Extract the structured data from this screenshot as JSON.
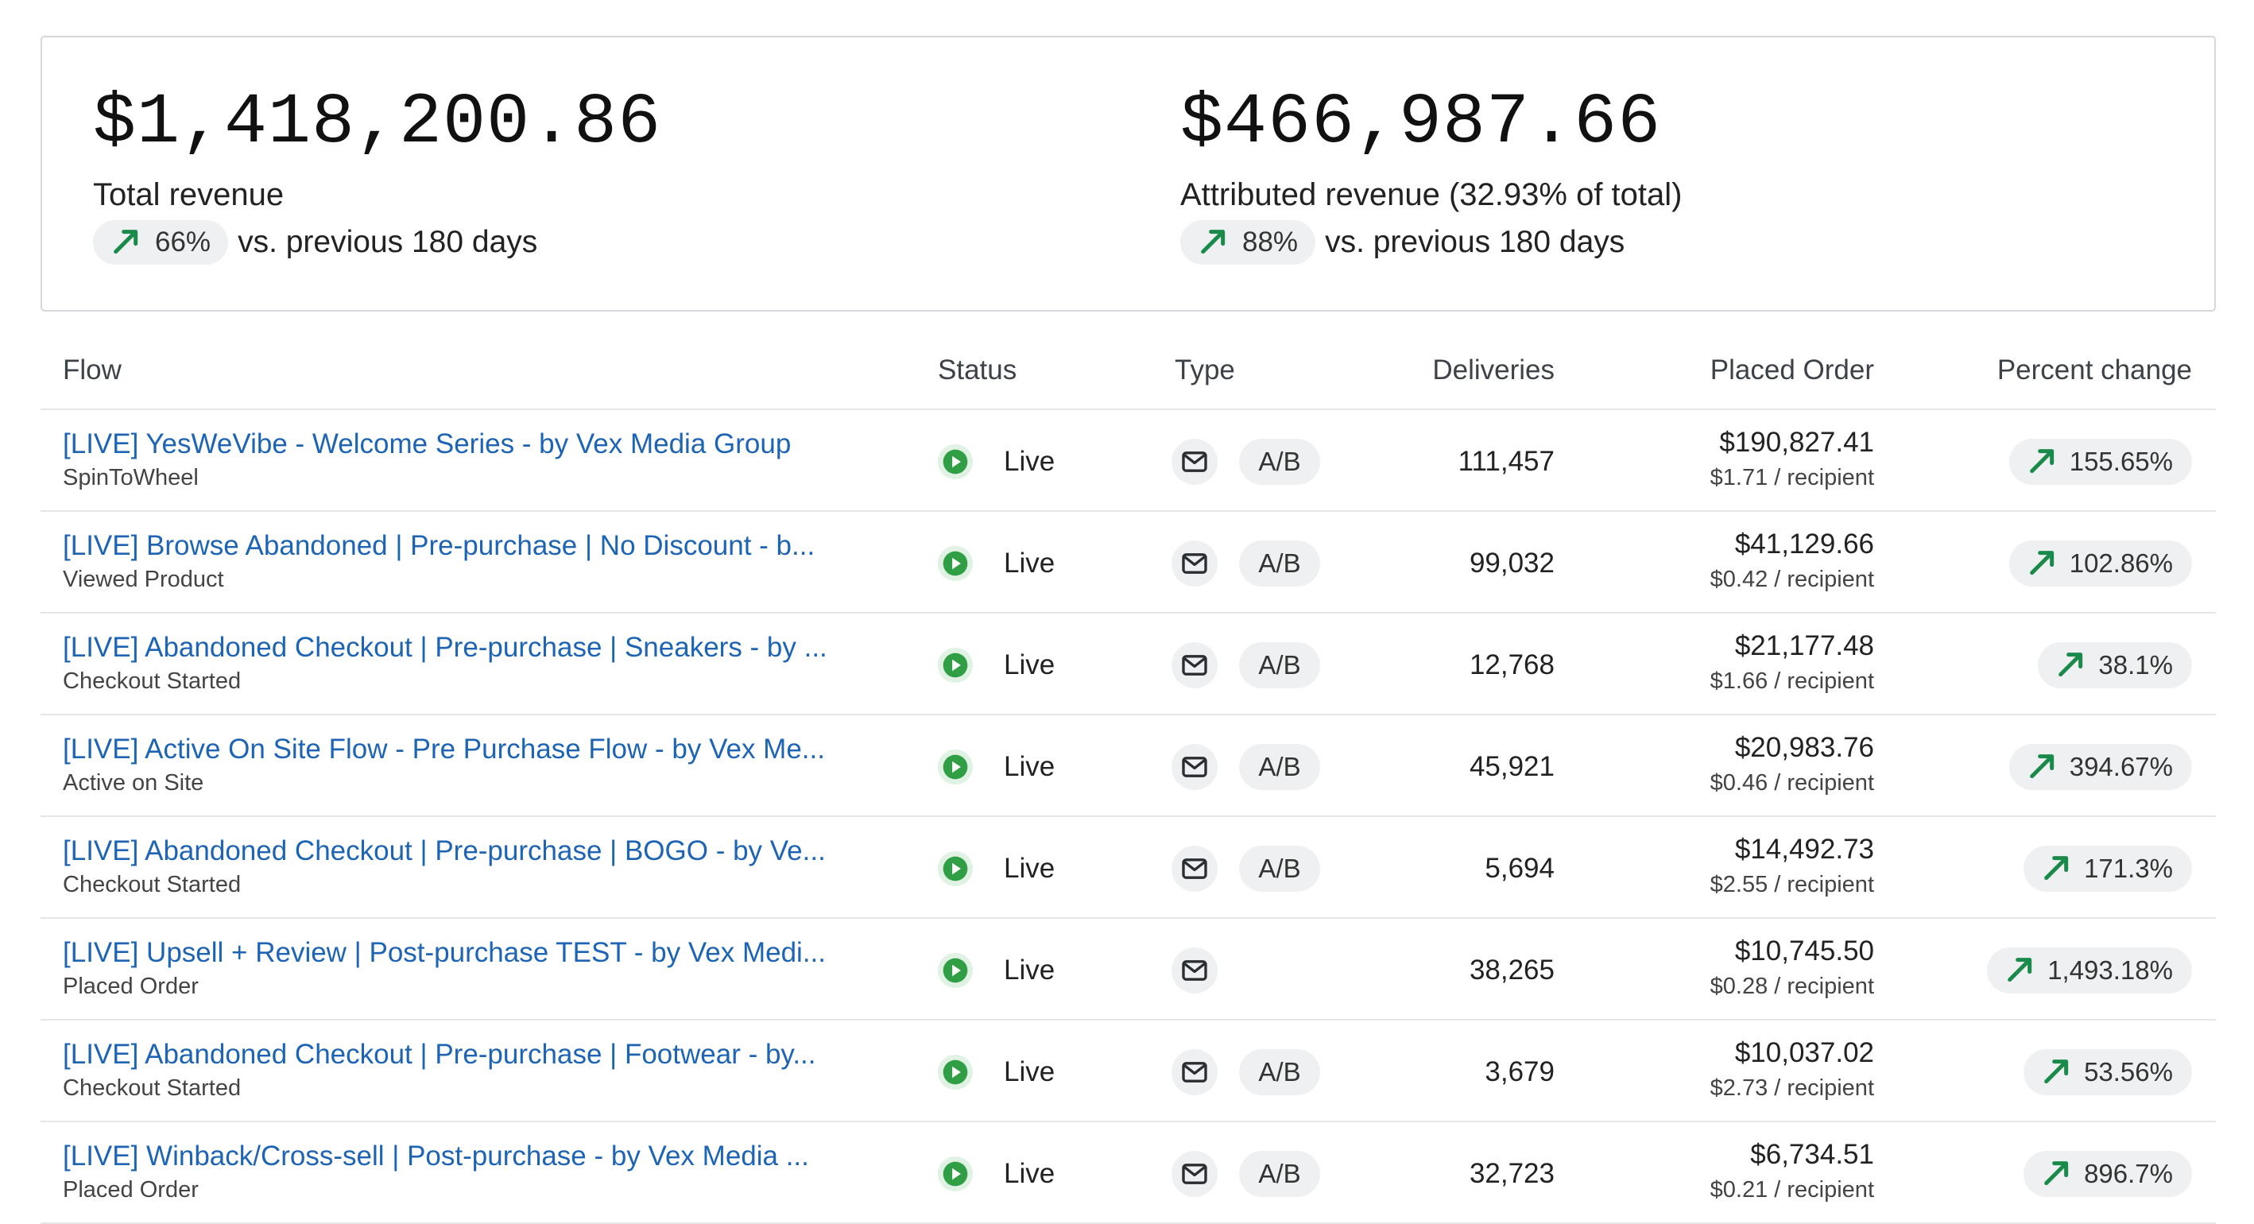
{
  "summary": {
    "total": {
      "value": "$1,418,200.86",
      "label": "Total revenue",
      "change": "66%",
      "compare_text": "vs. previous 180 days"
    },
    "attributed": {
      "value": "$466,987.66",
      "label": "Attributed revenue (32.93% of total)",
      "change": "88%",
      "compare_text": "vs. previous 180 days"
    }
  },
  "table": {
    "headers": {
      "flow": "Flow",
      "status": "Status",
      "type": "Type",
      "deliveries": "Deliveries",
      "placed_order": "Placed Order",
      "percent_change": "Percent change"
    },
    "rows": [
      {
        "name": "[LIVE] YesWeVibe - Welcome Series - by Vex Media Group",
        "trigger": "SpinToWheel",
        "status": "Live",
        "ab": "A/B",
        "deliveries": "111,457",
        "placed": "$190,827.41",
        "per_recipient": "$1.71 / recipient",
        "change": "155.65%"
      },
      {
        "name": "[LIVE] Browse Abandoned | Pre-purchase | No Discount - b...",
        "trigger": "Viewed Product",
        "status": "Live",
        "ab": "A/B",
        "deliveries": "99,032",
        "placed": "$41,129.66",
        "per_recipient": "$0.42 / recipient",
        "change": "102.86%"
      },
      {
        "name": "[LIVE] Abandoned Checkout | Pre-purchase | Sneakers - by ...",
        "trigger": "Checkout Started",
        "status": "Live",
        "ab": "A/B",
        "deliveries": "12,768",
        "placed": "$21,177.48",
        "per_recipient": "$1.66 / recipient",
        "change": "38.1%"
      },
      {
        "name": "[LIVE] Active On Site Flow - Pre Purchase Flow - by Vex Me...",
        "trigger": "Active on Site",
        "status": "Live",
        "ab": "A/B",
        "deliveries": "45,921",
        "placed": "$20,983.76",
        "per_recipient": "$0.46 / recipient",
        "change": "394.67%"
      },
      {
        "name": "[LIVE] Abandoned Checkout | Pre-purchase | BOGO - by Ve...",
        "trigger": "Checkout Started",
        "status": "Live",
        "ab": "A/B",
        "deliveries": "5,694",
        "placed": "$14,492.73",
        "per_recipient": "$2.55 / recipient",
        "change": "171.3%"
      },
      {
        "name": "[LIVE] Upsell + Review | Post-purchase TEST - by Vex Medi...",
        "trigger": "Placed Order",
        "status": "Live",
        "ab": "",
        "deliveries": "38,265",
        "placed": "$10,745.50",
        "per_recipient": "$0.28 / recipient",
        "change": "1,493.18%"
      },
      {
        "name": "[LIVE] Abandoned Checkout | Pre-purchase | Footwear - by...",
        "trigger": "Checkout Started",
        "status": "Live",
        "ab": "A/B",
        "deliveries": "3,679",
        "placed": "$10,037.02",
        "per_recipient": "$2.73 / recipient",
        "change": "53.56%"
      },
      {
        "name": "[LIVE] Winback/Cross-sell | Post-purchase - by Vex Media ...",
        "trigger": "Placed Order",
        "status": "Live",
        "ab": "A/B",
        "deliveries": "32,723",
        "placed": "$6,734.51",
        "per_recipient": "$0.21 / recipient",
        "change": "896.7%"
      }
    ]
  },
  "colors": {
    "link": "#1d64b5",
    "positive": "#1a8a4a",
    "pill_bg": "#eef0f1",
    "live": "#2f9e44"
  },
  "icons": {
    "trend": "trend-up-icon",
    "status": "play-circle-icon",
    "type": "mail-icon"
  }
}
